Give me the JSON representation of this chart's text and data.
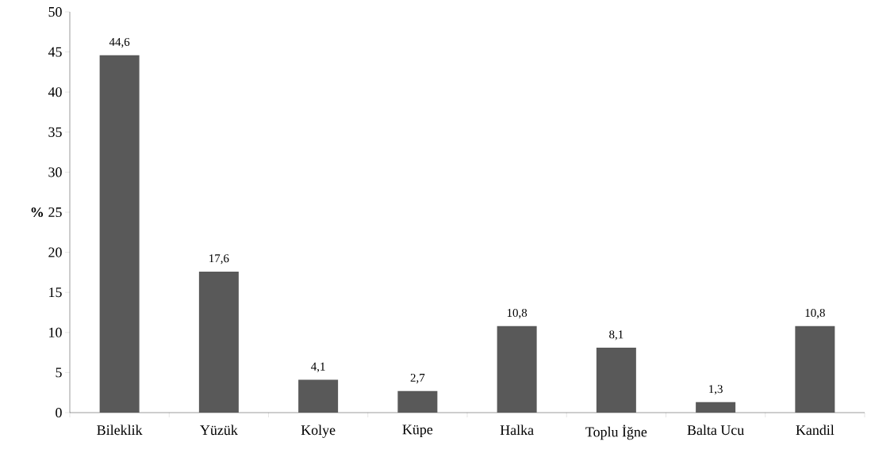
{
  "chart_data": {
    "type": "bar",
    "ylabel": "%",
    "categories": [
      "Bileklik",
      "Yüzük",
      "Kolye",
      "Küpe",
      "Halka",
      "Toplu İğne",
      "Balta Ucu",
      "Kandil"
    ],
    "values": [
      44.6,
      17.6,
      4.1,
      2.7,
      10.8,
      8.1,
      1.3,
      10.8
    ],
    "value_labels": [
      "44,6",
      "17,6",
      "4,1",
      "2,7",
      "10,8",
      "8,1",
      "1,3",
      "10,8"
    ],
    "color": "#595959",
    "ylim": [
      0,
      50
    ],
    "yticks": [
      0,
      5,
      10,
      15,
      20,
      25,
      30,
      35,
      40,
      45,
      50
    ]
  }
}
